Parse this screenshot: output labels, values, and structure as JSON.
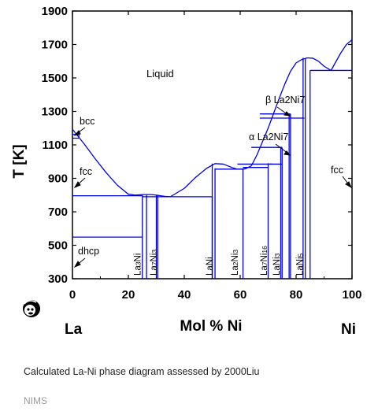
{
  "chart_data": {
    "type": "line",
    "title": "",
    "ylabel": "T [K]",
    "xlabel": "Mol % Ni",
    "xlim": [
      0,
      100
    ],
    "ylim": [
      300,
      1900
    ],
    "xticks": [
      0,
      20,
      40,
      60,
      80,
      100
    ],
    "yticks": [
      300,
      500,
      700,
      900,
      1100,
      1300,
      1500,
      1700,
      1900
    ],
    "element_left": "La",
    "element_right": "Ni",
    "liquid_label": "Liquid",
    "grid": false,
    "line_color": "#0000e6",
    "liquidus": [
      {
        "x": [
          0,
          4,
          8,
          12,
          16,
          20,
          22.5
        ],
        "y": [
          1193,
          1110,
          1020,
          935,
          860,
          805,
          800
        ]
      },
      {
        "x": [
          22.5,
          25,
          28,
          30
        ],
        "y": [
          800,
          803,
          803,
          800
        ]
      },
      {
        "x": [
          30,
          33,
          35
        ],
        "y": [
          800,
          792,
          790
        ]
      },
      {
        "x": [
          35,
          40,
          44,
          48,
          51,
          54,
          57,
          59,
          61,
          62,
          64
        ],
        "y": [
          790,
          840,
          905,
          960,
          988,
          985,
          965,
          955,
          955,
          958,
          975
        ]
      },
      {
        "x": [
          64,
          66,
          68,
          70,
          72,
          74,
          76,
          78,
          80,
          82,
          84,
          86,
          88
        ],
        "y": [
          975,
          1040,
          1120,
          1200,
          1290,
          1380,
          1465,
          1540,
          1590,
          1610,
          1620,
          1618,
          1600
        ]
      },
      {
        "x": [
          88,
          90,
          92.5
        ],
        "y": [
          1600,
          1570,
          1545
        ]
      },
      {
        "x": [
          92.5,
          94,
          96,
          98,
          100
        ],
        "y": [
          1545,
          1590,
          1650,
          1700,
          1728
        ]
      }
    ],
    "segments": [
      {
        "x": [
          0,
          2.3
        ],
        "y": [
          1140,
          1140
        ]
      },
      {
        "x": [
          0,
          2.3
        ],
        "y": [
          1163,
          1163
        ]
      },
      {
        "x": [
          2.3,
          2.3
        ],
        "y": [
          1140,
          1163
        ]
      },
      {
        "x": [
          0,
          25
        ],
        "y": [
          796,
          796
        ]
      },
      {
        "x": [
          0,
          25
        ],
        "y": [
          549,
          549
        ]
      },
      {
        "x": [
          25,
          35
        ],
        "y": [
          790,
          790
        ]
      },
      {
        "x": [
          35,
          50
        ],
        "y": [
          790,
          790
        ]
      },
      {
        "x": [
          50,
          50
        ],
        "y": [
          300,
          790
        ]
      },
      {
        "x": [
          25,
          25
        ],
        "y": [
          300,
          800
        ]
      },
      {
        "x": [
          26.5,
          26.5
        ],
        "y": [
          300,
          800
        ]
      },
      {
        "x": [
          30,
          30
        ],
        "y": [
          300,
          800
        ]
      },
      {
        "x": [
          30.5,
          30.5
        ],
        "y": [
          300,
          800
        ]
      },
      {
        "x": [
          50,
          50
        ],
        "y": [
          300,
          988
        ]
      },
      {
        "x": [
          51,
          51
        ],
        "y": [
          300,
          960
        ]
      },
      {
        "x": [
          51,
          61
        ],
        "y": [
          955,
          955
        ]
      },
      {
        "x": [
          61,
          61
        ],
        "y": [
          300,
          960
        ]
      },
      {
        "x": [
          61,
          70
        ],
        "y": [
          965,
          965
        ]
      },
      {
        "x": [
          59,
          75
        ],
        "y": [
          985,
          985
        ]
      },
      {
        "x": [
          70,
          70
        ],
        "y": [
          300,
          990
        ]
      },
      {
        "x": [
          70,
          71.5
        ],
        "y": [
          985,
          985
        ]
      },
      {
        "x": [
          74.5,
          74.5
        ],
        "y": [
          300,
          1085
        ]
      },
      {
        "x": [
          75,
          75
        ],
        "y": [
          300,
          1085
        ]
      },
      {
        "x": [
          64,
          75
        ],
        "y": [
          1085,
          1085
        ]
      },
      {
        "x": [
          77.5,
          77.5
        ],
        "y": [
          300,
          1285
        ]
      },
      {
        "x": [
          78,
          78
        ],
        "y": [
          300,
          1285
        ]
      },
      {
        "x": [
          67,
          78
        ],
        "y": [
          1285,
          1285
        ]
      },
      {
        "x": [
          67,
          78
        ],
        "y": [
          1260,
          1260
        ]
      },
      {
        "x": [
          78,
          83
        ],
        "y": [
          1260,
          1260
        ]
      },
      {
        "x": [
          82.5,
          82.5
        ],
        "y": [
          300,
          1620
        ]
      },
      {
        "x": [
          83.3,
          83.3
        ],
        "y": [
          300,
          1620
        ]
      },
      {
        "x": [
          85,
          100
        ],
        "y": [
          1545,
          1545
        ]
      },
      {
        "x": [
          85,
          85
        ],
        "y": [
          300,
          1545
        ]
      }
    ],
    "phase_labels": [
      {
        "text": "La",
        "sub": "3",
        "suffix": "Ni",
        "sub2": "",
        "x": 23.3
      },
      {
        "text": "La",
        "sub": "7",
        "suffix": "Ni",
        "sub2": "3",
        "x": 29.0
      },
      {
        "text": "LaNi",
        "sub": "",
        "suffix": "",
        "sub2": "",
        "x": 49.0
      },
      {
        "text": "La",
        "sub": "2",
        "suffix": "Ni",
        "sub2": "3",
        "x": 58.0
      },
      {
        "text": "La",
        "sub": "7",
        "suffix": "Ni",
        "sub2": "16",
        "x": 68.5
      },
      {
        "text": "LaNi",
        "sub": "3",
        "suffix": "",
        "sub2": "",
        "x": 73.0
      },
      {
        "text": "LaNi",
        "sub": "5",
        "suffix": "",
        "sub2": "",
        "x": 81.3
      }
    ],
    "annotations": [
      {
        "id": "bcc",
        "text": "bcc"
      },
      {
        "id": "fcc-left",
        "text": "fcc"
      },
      {
        "id": "dhcp",
        "text": "dhcp"
      },
      {
        "id": "fcc-right",
        "text": "fcc"
      },
      {
        "id": "beta",
        "text": "β La2Ni7"
      },
      {
        "id": "alpha",
        "text": "α La2Ni7"
      }
    ]
  },
  "caption": "Calculated La-Ni phase diagram assessed by 2000Liu",
  "source": "NIMS"
}
